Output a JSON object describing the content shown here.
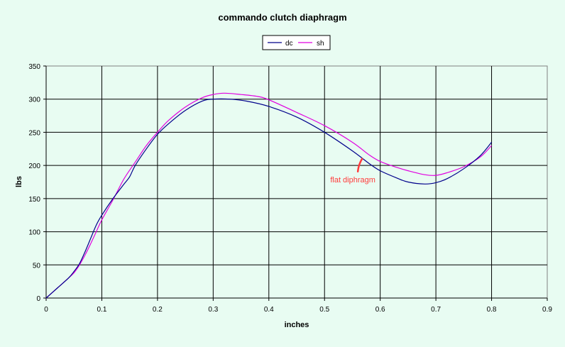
{
  "chart_data": {
    "type": "line",
    "title": "commando clutch diaphragm",
    "xlabel": "inches",
    "ylabel": "lbs",
    "xlim": [
      0,
      0.9
    ],
    "ylim": [
      0,
      350
    ],
    "xticks": [
      0,
      0.1,
      0.2,
      0.3,
      0.4,
      0.5,
      0.6,
      0.7,
      0.8,
      0.9
    ],
    "yticks": [
      0,
      50,
      100,
      150,
      200,
      250,
      300,
      350
    ],
    "grid": true,
    "legend_position": "top-center",
    "series": [
      {
        "name": "dc",
        "color": "#00008b",
        "x": [
          0,
          0.02,
          0.04,
          0.05,
          0.06,
          0.07,
          0.08,
          0.09,
          0.1,
          0.12,
          0.14,
          0.15,
          0.16,
          0.18,
          0.2,
          0.22,
          0.25,
          0.28,
          0.3,
          0.33,
          0.36,
          0.4,
          0.45,
          0.5,
          0.55,
          0.58,
          0.6,
          0.63,
          0.65,
          0.68,
          0.7,
          0.72,
          0.75,
          0.78,
          0.8
        ],
        "y": [
          0,
          15,
          30,
          40,
          52,
          70,
          90,
          110,
          125,
          150,
          172,
          183,
          200,
          225,
          247,
          263,
          283,
          297,
          300,
          300,
          297,
          289,
          273,
          250,
          222,
          203,
          192,
          181,
          175,
          172,
          174,
          180,
          195,
          215,
          235
        ]
      },
      {
        "name": "sh",
        "color": "#e000e0",
        "x": [
          0,
          0.02,
          0.04,
          0.05,
          0.06,
          0.07,
          0.08,
          0.09,
          0.1,
          0.12,
          0.14,
          0.16,
          0.18,
          0.2,
          0.22,
          0.25,
          0.28,
          0.3,
          0.32,
          0.35,
          0.38,
          0.4,
          0.45,
          0.5,
          0.55,
          0.58,
          0.6,
          0.63,
          0.65,
          0.68,
          0.7,
          0.72,
          0.75,
          0.78,
          0.8
        ],
        "y": [
          0,
          15,
          30,
          38,
          50,
          65,
          82,
          100,
          118,
          148,
          180,
          205,
          230,
          250,
          268,
          288,
          302,
          307,
          309,
          307,
          304,
          299,
          280,
          260,
          235,
          216,
          206,
          197,
          192,
          186,
          185,
          189,
          198,
          213,
          230
        ]
      }
    ],
    "annotations": [
      {
        "text": "flat diphragm",
        "color": "#ff3b3b",
        "x": 0.57,
        "y": 210
      }
    ]
  }
}
